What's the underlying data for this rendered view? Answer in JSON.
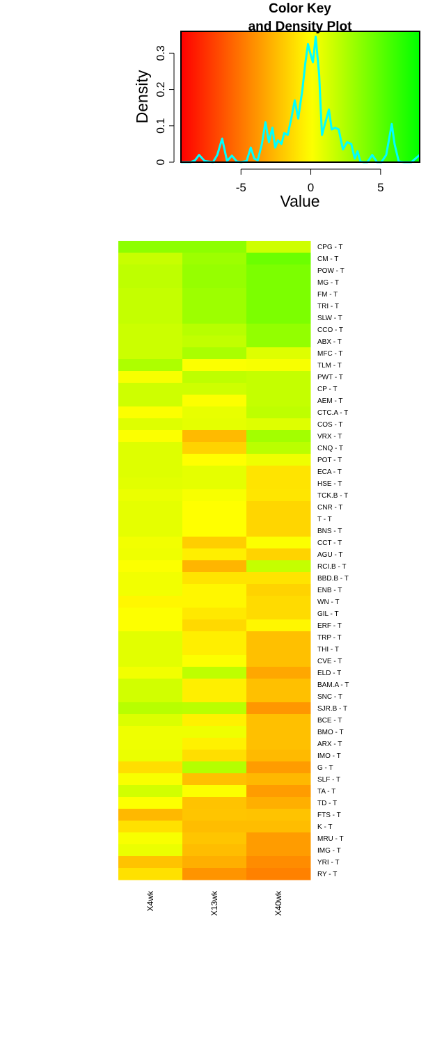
{
  "chart_data": [
    {
      "type": "line",
      "title": "Color Key\nand Density Plot",
      "xlabel": "Value",
      "ylabel": "Density",
      "xlim": [
        -9.3,
        7.8
      ],
      "ylim": [
        0,
        0.36
      ],
      "xticks": [
        -5,
        0,
        5
      ],
      "yticks": [
        0,
        0.1,
        0.2,
        0.3
      ],
      "colors": {
        "low": "#FF0000",
        "mid": "#FFFF00",
        "high": "#00FF00",
        "density_line": "#00FFFF"
      },
      "x": [
        -9.3,
        -8.6,
        -8.3,
        -8.0,
        -7.6,
        -7.0,
        -6.7,
        -6.35,
        -6.0,
        -5.65,
        -5.3,
        -5.0,
        -4.6,
        -4.3,
        -4.05,
        -3.8,
        -3.5,
        -3.25,
        -3.0,
        -2.75,
        -2.55,
        -2.35,
        -2.1,
        -1.9,
        -1.65,
        -1.4,
        -1.15,
        -0.9,
        -0.75,
        -0.6,
        -0.4,
        -0.2,
        0.0,
        0.15,
        0.35,
        0.6,
        0.8,
        1.05,
        1.3,
        1.5,
        1.75,
        2.0,
        2.3,
        2.6,
        2.9,
        3.15,
        3.35,
        3.55,
        3.8,
        4.05,
        4.4,
        4.75,
        5.05,
        5.4,
        5.8,
        6.0,
        6.3,
        6.7,
        7.2,
        7.8
      ],
      "y": [
        0.0,
        0.0,
        0.005,
        0.02,
        0.003,
        0.0,
        0.02,
        0.065,
        0.003,
        0.018,
        0.002,
        0.0,
        0.003,
        0.04,
        0.01,
        0.005,
        0.05,
        0.11,
        0.055,
        0.095,
        0.04,
        0.06,
        0.05,
        0.08,
        0.075,
        0.12,
        0.17,
        0.12,
        0.16,
        0.2,
        0.27,
        0.325,
        0.295,
        0.275,
        0.345,
        0.24,
        0.075,
        0.11,
        0.145,
        0.09,
        0.095,
        0.09,
        0.035,
        0.055,
        0.05,
        0.01,
        0.03,
        0.002,
        0.0,
        0.0,
        0.02,
        0.0,
        0.0,
        0.02,
        0.105,
        0.05,
        0.002,
        0.0,
        0.0,
        0.02
      ],
      "legend": "none"
    },
    {
      "type": "heatmap",
      "columns": [
        "X4wk",
        "X13wk",
        "X40wk"
      ],
      "rows": [
        "CPG - T",
        "CM - T",
        "POW - T",
        "MG - T",
        "FM - T",
        "TRI - T",
        "SLW - T",
        "CCO - T",
        "ABX - T",
        "MFC - T",
        "TLM - T",
        "PWT - T",
        "CP - T",
        "AEM - T",
        "CTC.A - T",
        "COS - T",
        "VRX - T",
        "CNQ - T",
        "POT - T",
        "ECA - T",
        "HSE - T",
        "TCK.B - T",
        "CNR - T",
        "T - T",
        "BNS - T",
        "CCT - T",
        "AGU - T",
        "RCI.B - T",
        "BBD.B - T",
        "ENB - T",
        "WN - T",
        "GIL - T",
        "ERF - T",
        "TRP - T",
        "THI - T",
        "CVE - T",
        "ELD - T",
        "BAM.A - T",
        "SNC - T",
        "SJR.B - T",
        "BCE - T",
        "BMO - T",
        "ARX - T",
        "IMO - T",
        "G - T",
        "SLF - T",
        "TA - T",
        "TD - T",
        "FTS - T",
        "K - T",
        "MRU - T",
        "IMG - T",
        "YRI - T",
        "RY - T"
      ],
      "values": [
        [
          3.5,
          3.5,
          1.5
        ],
        [
          1.7,
          3.0,
          4.5
        ],
        [
          2.0,
          3.2,
          4.0
        ],
        [
          2.0,
          3.2,
          4.0
        ],
        [
          1.8,
          3.0,
          4.0
        ],
        [
          1.8,
          3.0,
          4.0
        ],
        [
          1.8,
          3.0,
          4.0
        ],
        [
          1.6,
          2.2,
          3.3
        ],
        [
          1.6,
          1.9,
          3.3
        ],
        [
          1.6,
          2.6,
          1.0
        ],
        [
          2.5,
          0.1,
          0.2
        ],
        [
          0.2,
          2.0,
          1.8
        ],
        [
          1.5,
          1.5,
          1.8
        ],
        [
          1.5,
          0.1,
          1.8
        ],
        [
          0.1,
          0.7,
          2.0
        ],
        [
          1.0,
          0.8,
          1.0
        ],
        [
          0.1,
          -2.5,
          2.8
        ],
        [
          1.0,
          -1.6,
          2.1
        ],
        [
          1.0,
          0.0,
          0.5
        ],
        [
          1.0,
          0.8,
          -1.0
        ],
        [
          0.9,
          0.8,
          -1.0
        ],
        [
          0.6,
          0.2,
          -0.9
        ],
        [
          0.8,
          0.0,
          -1.5
        ],
        [
          0.8,
          0.0,
          -1.5
        ],
        [
          0.8,
          0.0,
          -1.5
        ],
        [
          0.4,
          -1.8,
          0.1
        ],
        [
          0.5,
          -0.6,
          -1.6
        ],
        [
          0.1,
          -2.7,
          1.8
        ],
        [
          0.4,
          -1.0,
          -1.0
        ],
        [
          0.4,
          -0.3,
          -1.6
        ],
        [
          -0.3,
          -0.3,
          -1.3
        ],
        [
          0.05,
          -0.8,
          -1.3
        ],
        [
          0.05,
          -1.4,
          -0.3
        ],
        [
          0.9,
          -0.6,
          -2.3
        ],
        [
          0.9,
          -0.6,
          -2.3
        ],
        [
          0.9,
          0.1,
          -2.3
        ],
        [
          0.4,
          2.0,
          -3.2
        ],
        [
          1.4,
          -0.6,
          -2.3
        ],
        [
          1.4,
          -0.6,
          -2.3
        ],
        [
          2.2,
          2.1,
          -3.8
        ],
        [
          1.1,
          -0.5,
          -2.3
        ],
        [
          0.5,
          0.5,
          -2.3
        ],
        [
          0.5,
          -0.5,
          -2.3
        ],
        [
          0.6,
          -1.2,
          -2.5
        ],
        [
          -1.2,
          2.3,
          -3.6
        ],
        [
          0.2,
          -2.3,
          -2.6
        ],
        [
          1.4,
          0.1,
          -3.6
        ],
        [
          0.05,
          -2.2,
          -2.9
        ],
        [
          -2.6,
          -2.1,
          -2.2
        ],
        [
          -1.1,
          -2.4,
          -2.4
        ],
        [
          0.2,
          -2.1,
          -3.6
        ],
        [
          0.6,
          -2.4,
          -3.6
        ],
        [
          -2.2,
          -2.9,
          -4.2
        ],
        [
          -1.1,
          -3.9,
          -4.6
        ]
      ]
    }
  ]
}
